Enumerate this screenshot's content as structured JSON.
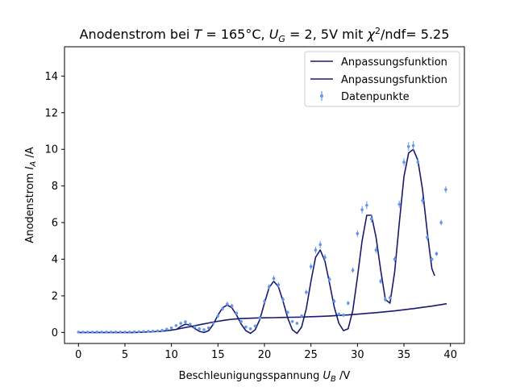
{
  "chart_data": {
    "type": "line",
    "title": "Anodenstrom bei T = 165°C, U_G = 2,5V mit χ²/ndf= 5.25",
    "title_parts": {
      "prefix": "Anodenstrom bei ",
      "T": "T",
      "eq1": " = 165°C, ",
      "U": "U",
      "G": "G",
      "eq2": " = 2, 5V mit ",
      "chi": "χ",
      "sq": "2",
      "suffix": "/ndf= 5.25"
    },
    "xlabel": "Beschleunigungsspannung U_B /V",
    "xlabel_parts": {
      "text": "Beschleunigungsspannung ",
      "U": "U",
      "B": "B",
      "unit": " /V"
    },
    "ylabel": "Anodenstrom I_A /A",
    "ylabel_parts": {
      "text": "Anodenstrom ",
      "I": "I",
      "A": "A",
      "unit": " /A"
    },
    "xlim": [
      -1.5,
      41.5
    ],
    "ylim": [
      -0.6,
      15.6
    ],
    "xticks": [
      0,
      5,
      10,
      15,
      20,
      25,
      30,
      35,
      40
    ],
    "yticks": [
      0,
      2,
      4,
      6,
      8,
      10,
      12,
      14
    ],
    "grid": false,
    "legend_position": "upper right",
    "series": [
      {
        "name": "Anpassungsfunktion",
        "kind": "line",
        "color": "#191970",
        "x": [
          0.0,
          2.0,
          4.0,
          6.0,
          7.0,
          8.0,
          9.0,
          9.5,
          10.0,
          10.5,
          11.0,
          11.5,
          12.0,
          12.5,
          13.0,
          13.5,
          14.0,
          14.5,
          15.0,
          15.5,
          16.0,
          16.5,
          17.0,
          17.5,
          18.0,
          18.5,
          19.0,
          20.0,
          21.0,
          22.0,
          23.0,
          24.0,
          25.0,
          26.0,
          27.0,
          28.0,
          29.0,
          30.0,
          31.0,
          32.0,
          33.0,
          34.0,
          35.0,
          36.0,
          37.0,
          38.0,
          39.0,
          39.6
        ],
        "y": [
          0.0,
          0.0,
          0.0,
          0.0,
          0.02,
          0.04,
          0.07,
          0.1,
          0.13,
          0.17,
          0.22,
          0.27,
          0.32,
          0.37,
          0.42,
          0.47,
          0.52,
          0.57,
          0.61,
          0.65,
          0.69,
          0.72,
          0.74,
          0.76,
          0.77,
          0.78,
          0.79,
          0.8,
          0.81,
          0.82,
          0.83,
          0.84,
          0.86,
          0.88,
          0.9,
          0.93,
          0.96,
          1.0,
          1.04,
          1.08,
          1.13,
          1.18,
          1.24,
          1.3,
          1.37,
          1.44,
          1.52,
          1.57
        ]
      },
      {
        "name": "Anpassungsfunktion",
        "kind": "line",
        "color": "#191970",
        "x": [
          10.5,
          11.0,
          11.5,
          12.0,
          12.5,
          13.0,
          13.5,
          14.0,
          14.5,
          15.0,
          15.5,
          16.0,
          16.5,
          17.0,
          17.5,
          18.0,
          18.5,
          19.0,
          19.5,
          20.0,
          20.5,
          21.0,
          21.5,
          22.0,
          22.5,
          23.0,
          23.5,
          24.0,
          24.5,
          25.0,
          25.5,
          26.0,
          26.5,
          27.0,
          27.5,
          28.0,
          28.5,
          29.0,
          29.5,
          30.0,
          30.5,
          31.0,
          31.5,
          32.0,
          32.5,
          33.0,
          33.5,
          34.0,
          34.5,
          35.0,
          35.5,
          36.0,
          36.5,
          37.0,
          37.5,
          38.0,
          38.3
        ],
        "y": [
          0.15,
          0.33,
          0.45,
          0.4,
          0.22,
          0.06,
          0.0,
          0.1,
          0.45,
          0.95,
          1.35,
          1.5,
          1.35,
          0.95,
          0.45,
          0.1,
          -0.05,
          0.15,
          0.7,
          1.6,
          2.45,
          2.8,
          2.5,
          1.7,
          0.8,
          0.15,
          -0.05,
          0.3,
          1.3,
          2.8,
          4.1,
          4.5,
          3.9,
          2.7,
          1.4,
          0.5,
          0.1,
          0.2,
          1.2,
          3.0,
          5.0,
          6.4,
          6.4,
          5.2,
          3.4,
          1.8,
          1.6,
          3.3,
          6.0,
          8.5,
          9.8,
          10.0,
          9.4,
          7.8,
          5.5,
          3.5,
          3.1
        ]
      },
      {
        "name": "Datenpunkte",
        "kind": "errorbar",
        "color": "#6495ed",
        "x": [
          0.0,
          0.5,
          1.0,
          1.5,
          2.0,
          2.5,
          3.0,
          3.5,
          4.0,
          4.5,
          5.0,
          5.5,
          6.0,
          6.5,
          7.0,
          7.5,
          8.0,
          8.5,
          9.0,
          9.5,
          10.0,
          10.5,
          11.0,
          11.5,
          12.0,
          12.5,
          13.0,
          13.5,
          14.0,
          14.5,
          15.0,
          15.5,
          16.0,
          16.5,
          17.0,
          17.5,
          18.0,
          18.5,
          19.0,
          19.5,
          20.0,
          20.5,
          21.0,
          21.5,
          22.0,
          22.5,
          23.0,
          23.5,
          24.0,
          24.5,
          25.0,
          25.5,
          26.0,
          26.5,
          27.0,
          27.5,
          28.0,
          28.5,
          29.0,
          29.5,
          30.0,
          30.5,
          31.0,
          31.5,
          32.0,
          32.5,
          33.0,
          33.5,
          34.0,
          34.5,
          35.0,
          35.5,
          36.0,
          36.5,
          37.0,
          37.5,
          38.0,
          38.5,
          39.0,
          39.5
        ],
        "y": [
          0.02,
          0.02,
          0.02,
          0.02,
          0.02,
          0.02,
          0.02,
          0.02,
          0.02,
          0.02,
          0.02,
          0.02,
          0.03,
          0.04,
          0.05,
          0.06,
          0.07,
          0.08,
          0.12,
          0.18,
          0.25,
          0.38,
          0.5,
          0.58,
          0.45,
          0.3,
          0.2,
          0.15,
          0.25,
          0.5,
          0.9,
          1.3,
          1.55,
          1.45,
          1.05,
          0.6,
          0.3,
          0.2,
          0.35,
          0.8,
          1.7,
          2.5,
          2.95,
          2.6,
          1.8,
          1.1,
          0.6,
          0.5,
          0.9,
          2.2,
          3.6,
          4.5,
          4.8,
          4.1,
          2.9,
          1.7,
          1.0,
          0.95,
          1.6,
          3.4,
          5.4,
          6.7,
          6.95,
          6.2,
          4.5,
          2.8,
          1.8,
          1.9,
          4.0,
          7.0,
          9.3,
          10.15,
          10.2,
          9.3,
          7.2,
          5.2,
          4.0,
          4.3,
          6.0,
          7.8
        ],
        "yerr": [
          0.05,
          0.05,
          0.05,
          0.05,
          0.05,
          0.05,
          0.05,
          0.05,
          0.05,
          0.05,
          0.05,
          0.05,
          0.05,
          0.05,
          0.05,
          0.05,
          0.05,
          0.05,
          0.05,
          0.06,
          0.06,
          0.07,
          0.08,
          0.09,
          0.08,
          0.07,
          0.06,
          0.06,
          0.06,
          0.08,
          0.1,
          0.12,
          0.13,
          0.12,
          0.1,
          0.08,
          0.07,
          0.07,
          0.08,
          0.1,
          0.12,
          0.14,
          0.16,
          0.14,
          0.12,
          0.1,
          0.08,
          0.08,
          0.1,
          0.14,
          0.16,
          0.18,
          0.2,
          0.18,
          0.15,
          0.12,
          0.1,
          0.1,
          0.12,
          0.15,
          0.18,
          0.2,
          0.22,
          0.2,
          0.18,
          0.15,
          0.12,
          0.12,
          0.15,
          0.2,
          0.22,
          0.24,
          0.25,
          0.22,
          0.2,
          0.15,
          0.12,
          0.12,
          0.15,
          0.18
        ]
      }
    ]
  }
}
